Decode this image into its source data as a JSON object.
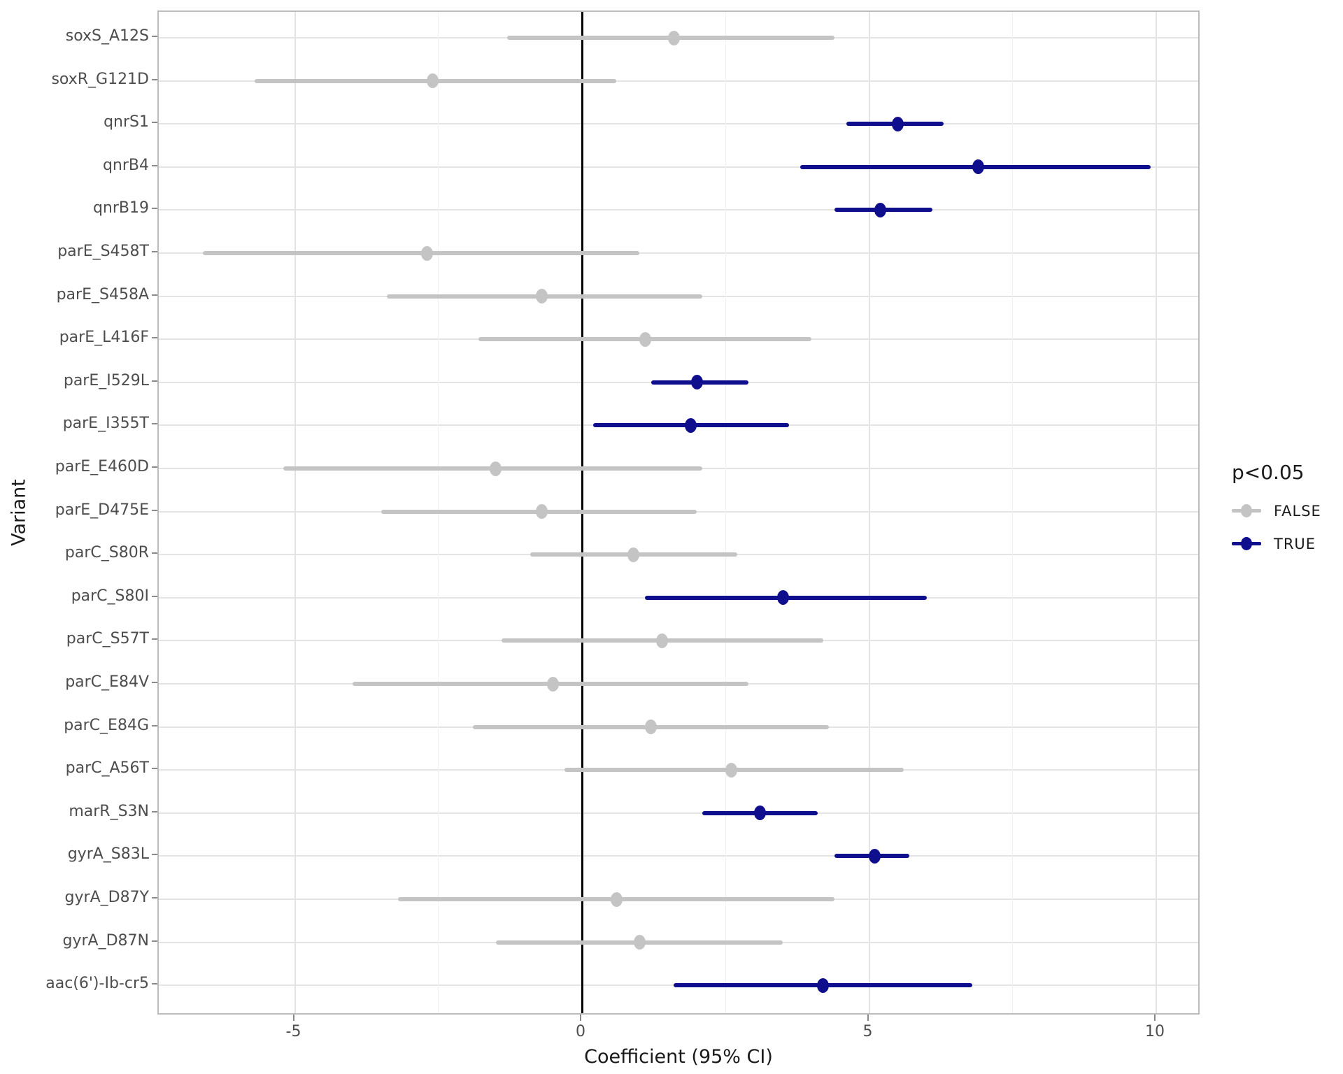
{
  "chart_data": {
    "type": "scatter",
    "subtype": "forest-plot-coefficients",
    "title": "",
    "xlabel": "Coefficient (95% CI)",
    "ylabel": "Variant",
    "x_ticks": [
      -5,
      0,
      5,
      10
    ],
    "x_minor_ticks": [
      -2.5,
      2.5,
      7.5
    ],
    "xlim": [
      -7.4,
      10.8
    ],
    "grid": true,
    "reference_line_x": 0,
    "legend": {
      "title": "p<0.05",
      "position": "right",
      "items": [
        {
          "label": "FALSE",
          "color": "#c4c4c4"
        },
        {
          "label": "TRUE",
          "color": "#0f0f8e"
        }
      ]
    },
    "rows": [
      {
        "variant": "soxS_A12S",
        "estimate": 1.6,
        "ci_low": -1.3,
        "ci_high": 4.4,
        "significant": false
      },
      {
        "variant": "soxR_G121D",
        "estimate": -2.6,
        "ci_low": -5.7,
        "ci_high": 0.6,
        "significant": false
      },
      {
        "variant": "qnrS1",
        "estimate": 5.5,
        "ci_low": 4.6,
        "ci_high": 6.3,
        "significant": true
      },
      {
        "variant": "qnrB4",
        "estimate": 6.9,
        "ci_low": 3.8,
        "ci_high": 9.9,
        "significant": true
      },
      {
        "variant": "qnrB19",
        "estimate": 5.2,
        "ci_low": 4.4,
        "ci_high": 6.1,
        "significant": true
      },
      {
        "variant": "parE_S458T",
        "estimate": -2.7,
        "ci_low": -6.6,
        "ci_high": 1.0,
        "significant": false
      },
      {
        "variant": "parE_S458A",
        "estimate": -0.7,
        "ci_low": -3.4,
        "ci_high": 2.1,
        "significant": false
      },
      {
        "variant": "parE_L416F",
        "estimate": 1.1,
        "ci_low": -1.8,
        "ci_high": 4.0,
        "significant": false
      },
      {
        "variant": "parE_I529L",
        "estimate": 2.0,
        "ci_low": 1.2,
        "ci_high": 2.9,
        "significant": true
      },
      {
        "variant": "parE_I355T",
        "estimate": 1.9,
        "ci_low": 0.2,
        "ci_high": 3.6,
        "significant": true
      },
      {
        "variant": "parE_E460D",
        "estimate": -1.5,
        "ci_low": -5.2,
        "ci_high": 2.1,
        "significant": false
      },
      {
        "variant": "parE_D475E",
        "estimate": -0.7,
        "ci_low": -3.5,
        "ci_high": 2.0,
        "significant": false
      },
      {
        "variant": "parC_S80R",
        "estimate": 0.9,
        "ci_low": -0.9,
        "ci_high": 2.7,
        "significant": false
      },
      {
        "variant": "parC_S80I",
        "estimate": 3.5,
        "ci_low": 1.1,
        "ci_high": 6.0,
        "significant": true
      },
      {
        "variant": "parC_S57T",
        "estimate": 1.4,
        "ci_low": -1.4,
        "ci_high": 4.2,
        "significant": false
      },
      {
        "variant": "parC_E84V",
        "estimate": -0.5,
        "ci_low": -4.0,
        "ci_high": 2.9,
        "significant": false
      },
      {
        "variant": "parC_E84G",
        "estimate": 1.2,
        "ci_low": -1.9,
        "ci_high": 4.3,
        "significant": false
      },
      {
        "variant": "parC_A56T",
        "estimate": 2.6,
        "ci_low": -0.3,
        "ci_high": 5.6,
        "significant": false
      },
      {
        "variant": "marR_S3N",
        "estimate": 3.1,
        "ci_low": 2.1,
        "ci_high": 4.1,
        "significant": true
      },
      {
        "variant": "gyrA_S83L",
        "estimate": 5.1,
        "ci_low": 4.4,
        "ci_high": 5.7,
        "significant": true
      },
      {
        "variant": "gyrA_D87Y",
        "estimate": 0.6,
        "ci_low": -3.2,
        "ci_high": 4.4,
        "significant": false
      },
      {
        "variant": "gyrA_D87N",
        "estimate": 1.0,
        "ci_low": -1.5,
        "ci_high": 3.5,
        "significant": false
      },
      {
        "variant": "aac(6')-Ib-cr5",
        "estimate": 4.2,
        "ci_low": 1.6,
        "ci_high": 6.8,
        "significant": true
      }
    ],
    "colors": {
      "false_series": "#c4c4c4",
      "true_series": "#0f0f8e",
      "reference_line": "#000000",
      "grid_major": "#e4e4e4",
      "grid_minor": "#f1f1f1",
      "panel_border": "#bcbcbc",
      "tick_text": "#4d4d4d",
      "title_text": "#1a1a1a",
      "background": "#ffffff"
    }
  }
}
